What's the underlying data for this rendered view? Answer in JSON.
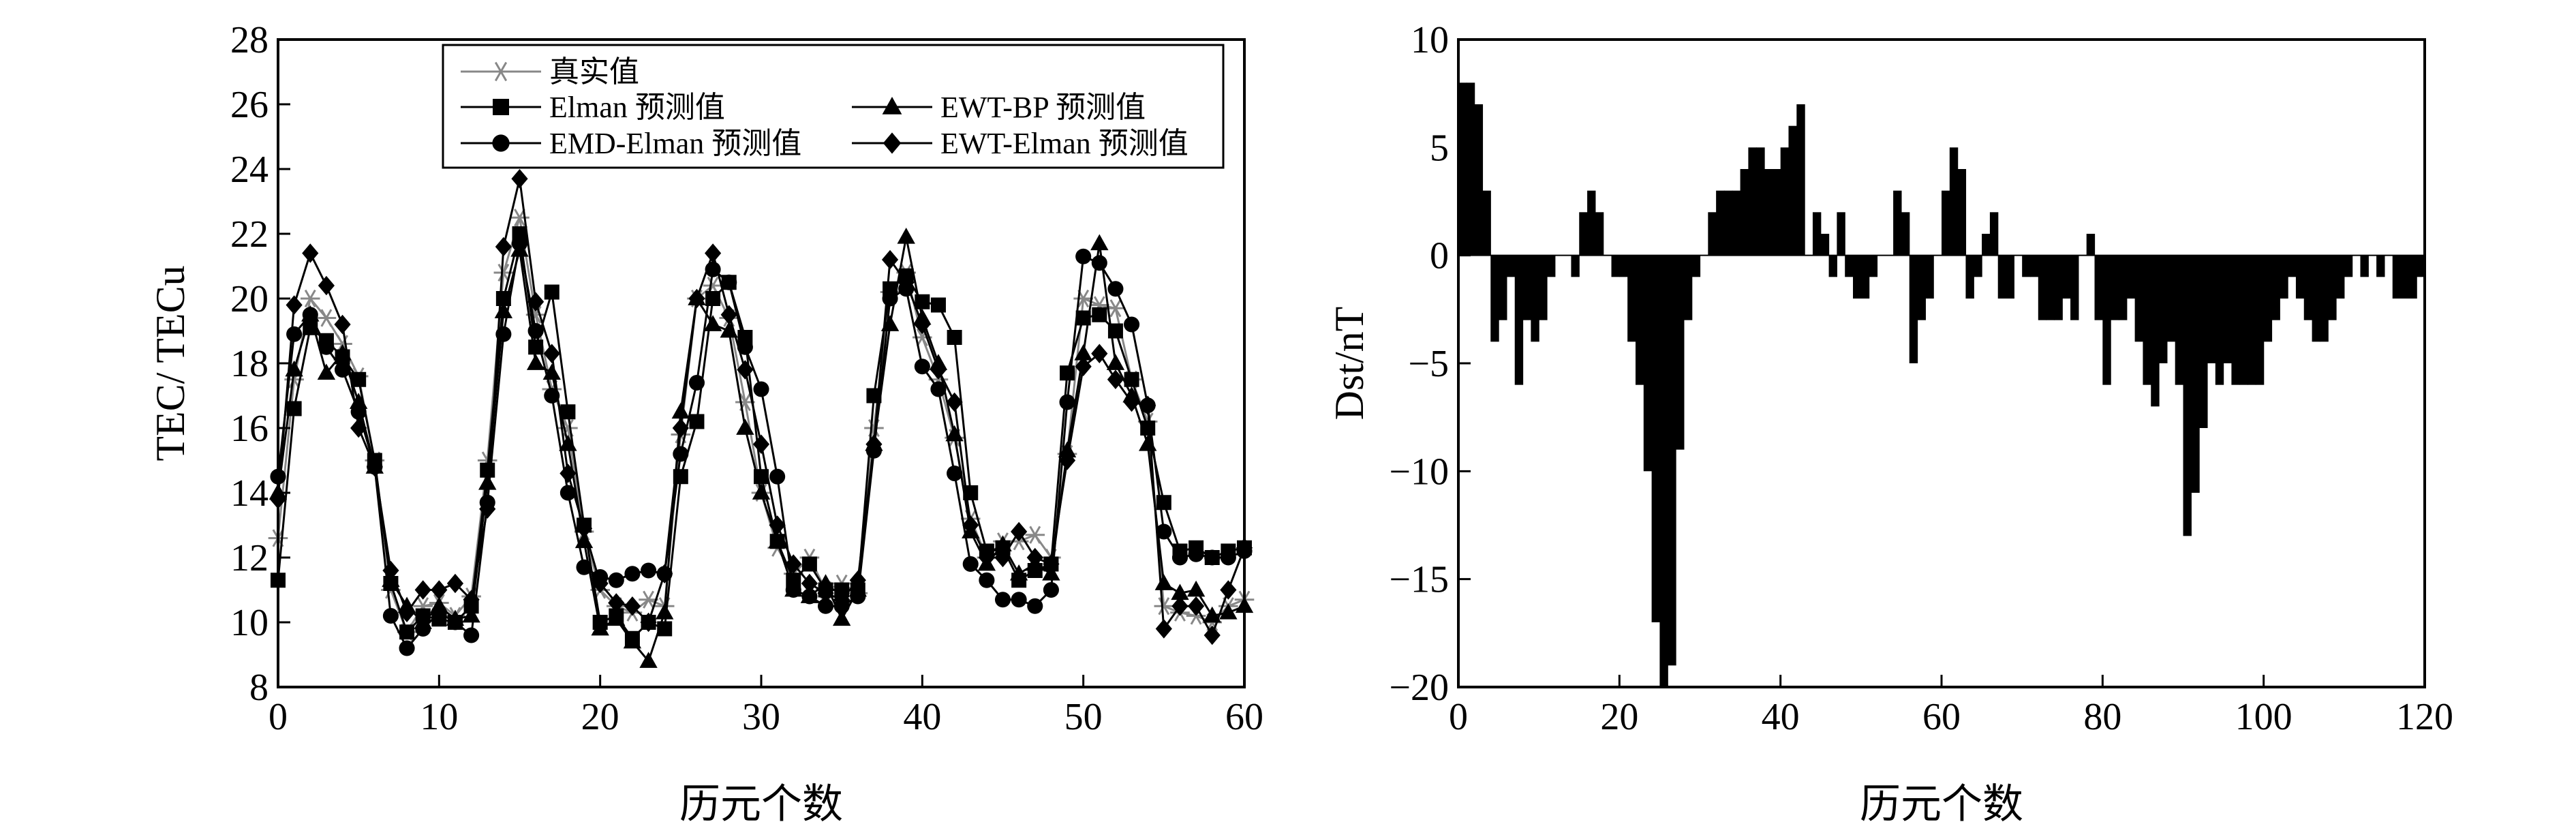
{
  "chart_data": [
    {
      "type": "line",
      "xlabel": "历元个数",
      "ylabel": "TEC/ TECu",
      "xlim": [
        0,
        60
      ],
      "ylim": [
        8,
        28
      ],
      "xticks": [
        0,
        10,
        20,
        30,
        40,
        50,
        60
      ],
      "yticks": [
        8,
        10,
        12,
        14,
        16,
        18,
        20,
        22,
        24,
        26,
        28
      ],
      "grid": false,
      "legend_position": "top",
      "series": [
        {
          "name": "真实值",
          "marker": "star",
          "color": "#888888",
          "values": [
            12.6,
            17.5,
            20.0,
            19.4,
            18.6,
            17.6,
            15.0,
            11.0,
            9.7,
            10.5,
            10.6,
            10.2,
            10.8,
            15.0,
            20.8,
            22.5,
            19.5,
            17.2,
            16.0,
            12.8,
            11.0,
            10.5,
            10.3,
            10.7,
            10.5,
            15.8,
            20.0,
            20.4,
            19.4,
            16.8,
            14.0,
            12.3,
            11.5,
            12.0,
            11.0,
            11.2,
            10.9,
            16.0,
            20.2,
            20.8,
            18.8,
            17.5,
            15.7,
            13.2,
            12.0,
            12.5,
            12.5,
            12.7,
            12.0,
            15.2,
            20.0,
            19.8,
            19.7,
            17.5,
            16.2,
            10.5,
            10.3,
            10.2,
            10.0,
            10.5,
            10.7
          ]
        },
        {
          "name": "Elman 预测值",
          "marker": "square",
          "color": "#000000",
          "values": [
            11.3,
            16.6,
            19.1,
            18.7,
            18.2,
            17.5,
            15.0,
            11.2,
            9.7,
            10.2,
            10.1,
            10.0,
            10.5,
            14.7,
            20.0,
            22.0,
            18.5,
            20.2,
            16.5,
            13.0,
            10.0,
            10.2,
            9.5,
            10.0,
            9.8,
            14.5,
            16.2,
            20.0,
            20.5,
            18.8,
            14.5,
            12.5,
            11.3,
            11.8,
            11.0,
            11.0,
            11.0,
            17.0,
            20.3,
            20.7,
            19.9,
            19.8,
            18.8,
            14.0,
            12.2,
            12.3,
            11.3,
            11.6,
            11.8,
            17.7,
            19.4,
            19.5,
            19.0,
            17.5,
            16.0,
            13.7,
            12.2,
            12.3,
            12.0,
            12.2,
            12.3
          ]
        },
        {
          "name": "EWT-BP 预测值",
          "marker": "triangle",
          "color": "#000000",
          "values": [
            14.0,
            17.8,
            19.5,
            17.7,
            18.3,
            16.8,
            14.8,
            11.3,
            10.5,
            10.0,
            10.5,
            10.1,
            10.2,
            14.3,
            19.6,
            21.5,
            18.0,
            17.7,
            15.5,
            12.5,
            9.8,
            10.1,
            9.4,
            8.8,
            10.3,
            16.5,
            20.0,
            19.2,
            19.0,
            16.0,
            14.0,
            12.5,
            11.0,
            10.8,
            11.2,
            10.1,
            11.0,
            15.5,
            19.2,
            21.9,
            19.4,
            18.0,
            15.8,
            12.8,
            11.8,
            12.4,
            11.5,
            11.8,
            11.5,
            15.3,
            18.3,
            21.7,
            18.0,
            17.0,
            15.5,
            11.2,
            10.9,
            11.0,
            10.2,
            10.3,
            10.5
          ]
        },
        {
          "name": "EMD-Elman 预测值",
          "marker": "circle",
          "color": "#000000",
          "values": [
            14.5,
            18.9,
            19.5,
            18.5,
            17.8,
            16.5,
            14.8,
            10.2,
            9.2,
            9.8,
            10.3,
            10.0,
            9.6,
            13.7,
            18.9,
            21.7,
            19.0,
            17.0,
            14.0,
            11.7,
            11.4,
            11.3,
            11.5,
            11.6,
            11.5,
            15.2,
            17.4,
            20.9,
            20.5,
            18.5,
            17.2,
            14.5,
            11.0,
            10.8,
            10.5,
            10.5,
            10.8,
            15.3,
            20.0,
            20.3,
            17.9,
            17.2,
            14.6,
            11.8,
            11.3,
            10.7,
            10.7,
            10.5,
            11.0,
            16.8,
            21.3,
            21.1,
            20.3,
            19.2,
            16.7,
            12.8,
            12.0,
            12.1,
            12.0,
            12.0,
            12.2
          ]
        },
        {
          "name": "EWT-Elman 预测值",
          "marker": "diamond",
          "color": "#000000",
          "values": [
            13.8,
            19.8,
            21.4,
            20.4,
            19.2,
            16.0,
            14.8,
            11.6,
            10.3,
            11.0,
            11.0,
            11.2,
            10.7,
            13.5,
            21.6,
            23.7,
            19.9,
            18.3,
            14.6,
            12.9,
            11.2,
            10.6,
            10.5,
            10.0,
            11.5,
            16.0,
            20.0,
            21.4,
            19.5,
            17.8,
            15.5,
            13.0,
            11.8,
            11.2,
            10.9,
            10.7,
            11.3,
            15.5,
            21.2,
            20.5,
            19.2,
            17.8,
            16.8,
            13.0,
            12.0,
            12.0,
            12.8,
            12.0,
            11.8,
            15.0,
            17.9,
            18.3,
            17.5,
            16.8,
            16.7,
            9.8,
            10.5,
            10.5,
            9.6,
            11.0,
            12.3
          ]
        }
      ]
    },
    {
      "type": "bar",
      "xlabel": "历元个数",
      "ylabel": "Dst/nT",
      "xlim": [
        0,
        120
      ],
      "ylim": [
        -20,
        10
      ],
      "xticks": [
        0,
        20,
        40,
        60,
        80,
        100,
        120
      ],
      "yticks": [
        -20,
        -15,
        -10,
        -5,
        0,
        5,
        10
      ],
      "grid": false,
      "values": [
        8,
        8,
        7,
        3,
        -4,
        -3,
        -1,
        -6,
        -3,
        -4,
        -3,
        -1,
        0,
        0,
        -1,
        2,
        3,
        2,
        0,
        -1,
        -1,
        -4,
        -6,
        -10,
        -17,
        -20,
        -19,
        -9,
        -3,
        -1,
        0,
        2,
        3,
        3,
        3,
        4,
        5,
        5,
        4,
        4,
        5,
        6,
        7,
        0,
        2,
        1,
        -1,
        2,
        -1,
        -2,
        -2,
        -1,
        0,
        0,
        3,
        2,
        -5,
        -3,
        -2,
        0,
        3,
        5,
        4,
        -2,
        -1,
        1,
        2,
        -2,
        -2,
        0,
        -1,
        -1,
        -3,
        -3,
        -3,
        -2,
        -3,
        0,
        1,
        -3,
        -6,
        -3,
        -3,
        -2,
        -4,
        -6,
        -7,
        -5,
        -4,
        -6,
        -13,
        -11,
        -8,
        -5,
        -6,
        -5,
        -6,
        -6,
        -6,
        -6,
        -4,
        -3,
        -2,
        -1,
        -2,
        -3,
        -4,
        -4,
        -3,
        -2,
        -1,
        0,
        -1,
        0,
        -1,
        0,
        -2,
        -2,
        -2,
        -1,
        0
      ]
    }
  ]
}
